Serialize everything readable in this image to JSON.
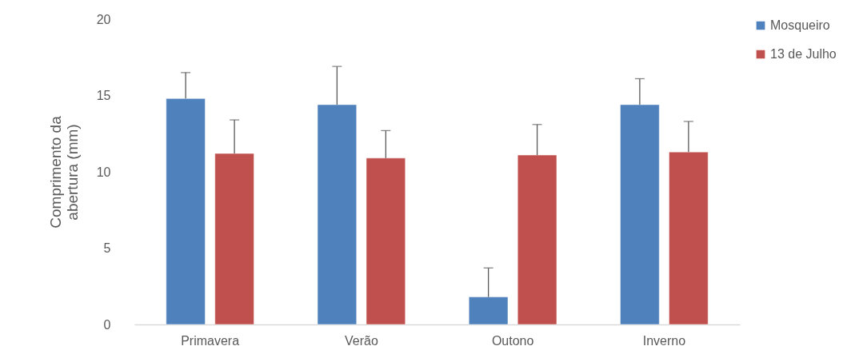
{
  "chart_data": {
    "type": "bar",
    "ylabel": "Comprimento da abertura (mm)",
    "categories": [
      "Primavera",
      "Verão",
      "Outono",
      "Inverno"
    ],
    "series": [
      {
        "name": "Mosqueiro",
        "color": "#4f81bd",
        "values": [
          14.8,
          14.4,
          1.8,
          14.4
        ],
        "errors": [
          [
            14.8,
            16.5
          ],
          [
            14.4,
            16.9
          ],
          [
            1.8,
            3.7
          ],
          [
            14.4,
            16.1
          ]
        ]
      },
      {
        "name": "13 de Julho",
        "color": "#c0504d",
        "values": [
          11.2,
          10.9,
          11.1,
          11.3
        ],
        "errors": [
          [
            11.2,
            13.4
          ],
          [
            10.9,
            12.7
          ],
          [
            11.1,
            13.1
          ],
          [
            11.3,
            13.3
          ]
        ]
      }
    ],
    "ylim": [
      0,
      20
    ],
    "yticks": [
      0,
      5,
      10,
      15,
      20
    ],
    "grid": false,
    "legend": "right"
  }
}
